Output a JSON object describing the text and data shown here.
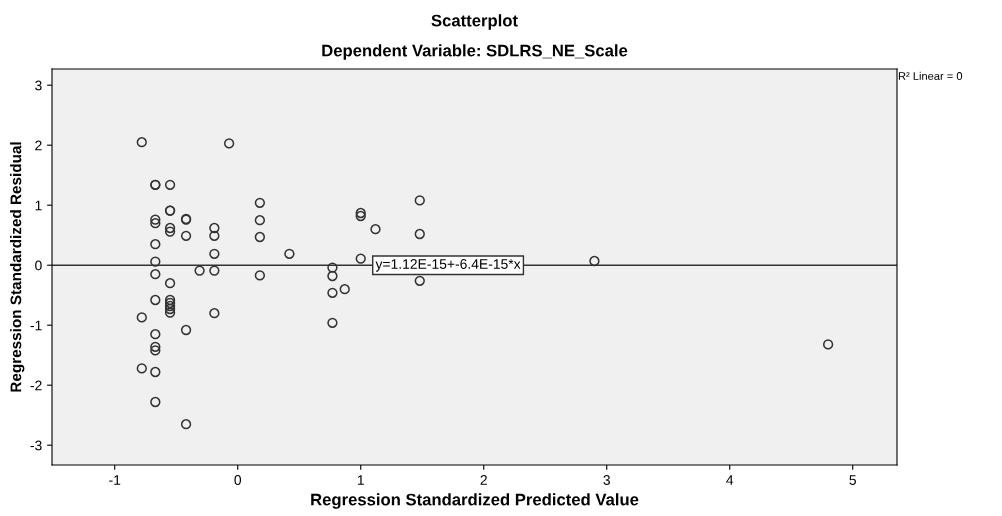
{
  "chart_data": {
    "type": "scatter",
    "title": "Scatterplot",
    "subtitle": "Dependent Variable: SDLRS_NE_Scale",
    "xlabel": "Regression Standardized Predicted Value",
    "ylabel": "Regression Standardized Residual",
    "xlim": [
      -1.51,
      5.36
    ],
    "ylim": [
      -3.33,
      3.27
    ],
    "xticks": [
      -1,
      0,
      1,
      2,
      3,
      4,
      5
    ],
    "yticks": [
      -3,
      -2,
      -1,
      0,
      1,
      2,
      3
    ],
    "grid": false,
    "series": [
      {
        "color": "#333333",
        "marker": "circle",
        "x": [
          -0.78,
          -0.07,
          -0.67,
          -0.67,
          -0.55,
          -0.55,
          -0.55,
          -0.67,
          -0.67,
          -0.42,
          -0.42,
          -0.55,
          -0.55,
          -0.42,
          -0.19,
          -0.19,
          -0.19,
          0.18,
          0.18,
          0.18,
          -0.67,
          -0.67,
          0.42,
          -0.67,
          -0.31,
          -0.19,
          0.18,
          -0.55,
          -0.67,
          -0.55,
          -0.55,
          -0.55,
          -0.55,
          -0.55,
          -0.19,
          -0.78,
          -0.42,
          -0.67,
          -0.67,
          -0.67,
          -0.78,
          -0.67,
          -0.67,
          -0.42,
          0.77,
          0.77,
          0.77,
          0.77,
          0.87,
          1.0,
          1.0,
          1.12,
          1.0,
          1.48,
          1.48,
          1.48,
          2.9,
          4.8
        ],
        "values": [
          2.05,
          2.03,
          1.34,
          1.34,
          1.34,
          0.91,
          0.91,
          0.76,
          0.7,
          0.77,
          0.76,
          0.62,
          0.56,
          0.49,
          0.62,
          0.49,
          0.19,
          1.04,
          0.75,
          0.47,
          0.35,
          0.06,
          0.19,
          -0.15,
          -0.09,
          -0.09,
          -0.17,
          -0.3,
          -0.58,
          -0.58,
          -0.63,
          -0.68,
          -0.73,
          -0.79,
          -0.8,
          -0.87,
          -1.08,
          -1.15,
          -1.36,
          -1.42,
          -1.72,
          -1.78,
          -2.28,
          -2.65,
          -0.04,
          -0.18,
          -0.46,
          -0.96,
          -0.4,
          0.87,
          0.82,
          0.6,
          0.11,
          1.08,
          0.52,
          -0.26,
          0.07,
          -1.32
        ]
      },
      {
        "type": "line",
        "marker": "none",
        "color": "#333333",
        "x": [
          -1.51,
          5.36
        ],
        "values": [
          0,
          0
        ]
      }
    ],
    "annotations": [
      {
        "text": "y=1.12E-15+-6.4E-15*x",
        "x": 1.12,
        "y": 0
      },
      "R² Linear = 0"
    ]
  }
}
